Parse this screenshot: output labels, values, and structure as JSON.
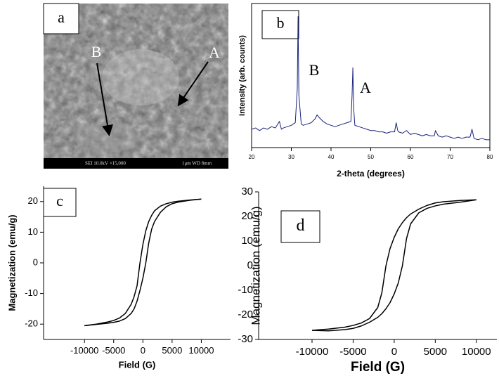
{
  "sem_image": {
    "panel_label": "a",
    "markers": [
      "B",
      "A"
    ],
    "info_bar": [
      "SEI 10.0kV ×15,000",
      "1μm WD 8mm"
    ]
  },
  "chart_data": [
    {
      "type": "line",
      "panel_label": "b",
      "x_label": "2-theta (degrees)",
      "y_label": "Intensity (arb. counts)",
      "annotations": [
        "B",
        "A"
      ],
      "color": "#1a237e",
      "x": [
        20,
        21,
        22,
        23,
        24,
        25,
        26,
        27,
        27.5,
        28,
        29,
        30,
        31,
        31.5,
        31.7,
        31.9,
        32.5,
        33,
        34,
        35,
        36,
        36.5,
        37,
        38,
        39,
        40,
        41,
        42,
        43,
        44,
        45,
        45.3,
        45.5,
        45.7,
        46,
        47,
        48,
        49,
        50,
        51,
        52,
        53,
        54,
        55,
        56,
        56.4,
        56.8,
        57,
        58,
        59,
        60,
        61,
        62,
        63,
        64,
        65,
        66,
        66.3,
        67,
        68,
        69,
        70,
        71,
        72,
        73,
        74,
        75,
        75.5,
        76,
        77,
        78,
        79,
        80
      ],
      "values": [
        14,
        15,
        13,
        15,
        14,
        16,
        15,
        20,
        14,
        15,
        16,
        17,
        19,
        45,
        100,
        40,
        18,
        17,
        18,
        19,
        22,
        25,
        23,
        20,
        18,
        17,
        16,
        17,
        18,
        19,
        20,
        40,
        61,
        30,
        17,
        16,
        15,
        14,
        13,
        13,
        12,
        12,
        11,
        12,
        12,
        19,
        13,
        12,
        11,
        13,
        10,
        11,
        10,
        9,
        10,
        9,
        9,
        13,
        9,
        8,
        9,
        8,
        7,
        8,
        7,
        8,
        8,
        14,
        7,
        6,
        7,
        6,
        6
      ],
      "xlim": [
        20,
        80
      ],
      "xticks": [
        20,
        30,
        40,
        50,
        60,
        70,
        80
      ],
      "ylim": [
        0,
        110
      ]
    },
    {
      "type": "line",
      "panel_label": "c",
      "x_label": "Field (G)",
      "y_label": "Magnetization (emu/g)",
      "x": [
        -10000,
        -8000,
        -6000,
        -5000,
        -4000,
        -3000,
        -2000,
        -1500,
        -1000,
        -500,
        0,
        500,
        1000,
        1500,
        2000,
        3000,
        4000,
        5000,
        6000,
        8000,
        10000
      ],
      "series": [
        {
          "color": "#000000",
          "values": [
            -20.5,
            -20,
            -19.3,
            -18.8,
            -18,
            -16.5,
            -13.5,
            -11,
            -7.5,
            0,
            6,
            10.5,
            13.5,
            15.5,
            17,
            18.5,
            19.3,
            19.8,
            20.1,
            20.5,
            20.8
          ]
        },
        {
          "color": "#000000",
          "values": [
            -20.5,
            -20.1,
            -19.7,
            -19.4,
            -19,
            -18.2,
            -16.5,
            -15,
            -12.5,
            -9,
            -5,
            0,
            6.5,
            11,
            13.5,
            16.5,
            18.3,
            19.3,
            19.8,
            20.4,
            20.8
          ]
        }
      ],
      "xlim": [
        -17000,
        15000
      ],
      "xticks": [
        -10000,
        -5000,
        0,
        5000,
        10000
      ],
      "ylim": [
        -25,
        25
      ],
      "yticks": [
        -20,
        -10,
        0,
        10,
        20
      ]
    },
    {
      "type": "line",
      "panel_label": "d",
      "x_label": "Field (G)",
      "y_label": "Magnetization (emu/g)",
      "x": [
        -10000,
        -8000,
        -6000,
        -5000,
        -4000,
        -3000,
        -2000,
        -1500,
        -1000,
        -500,
        0,
        500,
        1000,
        1500,
        2000,
        3000,
        4000,
        5000,
        6000,
        8000,
        10000
      ],
      "series": [
        {
          "color": "#000000",
          "values": [
            -26.3,
            -25.8,
            -25,
            -24.3,
            -23.3,
            -21.5,
            -17,
            -11,
            0,
            7,
            11.5,
            15,
            17.5,
            19.5,
            21,
            23,
            24.5,
            25.5,
            26,
            26.5,
            26.8
          ]
        },
        {
          "color": "#000000",
          "values": [
            -26.3,
            -26.5,
            -26,
            -25.5,
            -24.5,
            -23,
            -21,
            -19.5,
            -17.5,
            -15,
            -11.5,
            -7,
            0,
            11,
            17,
            21.5,
            23.3,
            24.3,
            25,
            25.8,
            26.8
          ]
        }
      ],
      "xlim": [
        -16500,
        12500
      ],
      "xticks": [
        -10000,
        -5000,
        0,
        5000,
        10000
      ],
      "ylim": [
        -30,
        30
      ],
      "yticks": [
        -30,
        -20,
        -10,
        0,
        10,
        20,
        30
      ]
    }
  ]
}
